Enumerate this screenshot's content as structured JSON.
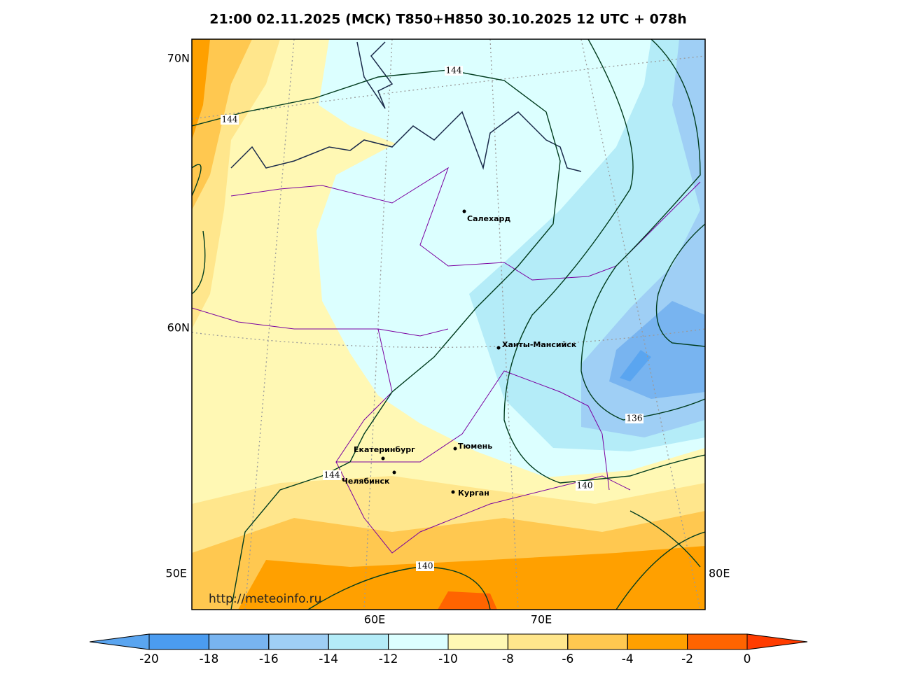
{
  "title": "21:00 02.11.2025 (МСК) T850+H850 30.10.2025 12 UTC + 078h",
  "url": "http://meteoinfo.ru",
  "axis_labels": {
    "left": [
      "70N",
      "60N",
      "50E"
    ],
    "bottom": [
      "60E",
      "70E"
    ],
    "right": [
      "80E"
    ]
  },
  "cities": [
    "Салехард",
    "Ханты-Мансийск",
    "Екатеринбург",
    "Тюмень",
    "Челябинск",
    "Курган"
  ],
  "contour_labels": [
    144,
    144,
    144,
    136,
    140,
    140
  ],
  "colorbar": {
    "ticks": [
      -20,
      -18,
      -16,
      -14,
      -12,
      -10,
      -8,
      -6,
      -4,
      -2,
      0
    ],
    "colors": [
      "#5aa5f0",
      "#4b9cf0",
      "#78b4f0",
      "#9fcff5",
      "#b4ecf8",
      "#dcffff",
      "#fff8b4",
      "#ffe68c",
      "#ffc850",
      "#ffa000",
      "#ff6400",
      "#ff3c00"
    ]
  }
}
